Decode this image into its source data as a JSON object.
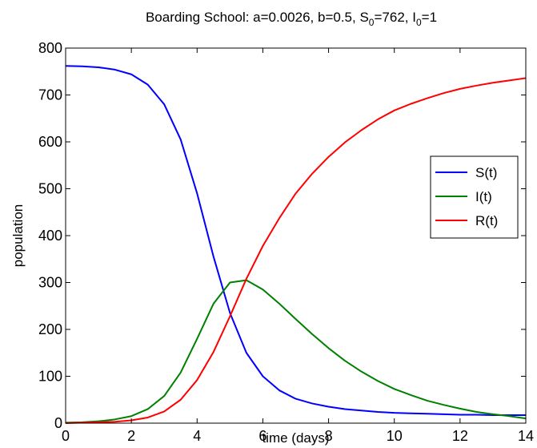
{
  "chart_data": {
    "type": "line",
    "title": {
      "prefix": "Boarding School: a=0.0026, b=0.5, S",
      "s_sub": "0",
      "middle": "=762, I",
      "i_sub": "0",
      "suffix": "=1"
    },
    "xlabel": "time (days)",
    "ylabel": "population",
    "xlim": [
      0,
      14
    ],
    "ylim": [
      0,
      800
    ],
    "xticks": [
      0,
      2,
      4,
      6,
      8,
      10,
      12,
      14
    ],
    "yticks": [
      0,
      100,
      200,
      300,
      400,
      500,
      600,
      700,
      800
    ],
    "grid": false,
    "legend_position": "right",
    "x": [
      0,
      0.5,
      1,
      1.5,
      2,
      2.5,
      3,
      3.5,
      4,
      4.5,
      5,
      5.5,
      6,
      6.5,
      7,
      7.5,
      8,
      8.5,
      9,
      9.5,
      10,
      10.5,
      11,
      11.5,
      12,
      12.5,
      13,
      13.5,
      14
    ],
    "series": [
      {
        "name": "S(t)",
        "color": "#0000ff",
        "values": [
          762,
          761,
          759,
          754,
          744,
          722,
          680,
          605,
          490,
          355,
          235,
          150,
          100,
          70,
          52,
          42,
          35,
          30,
          27,
          24,
          22,
          21,
          20,
          19,
          18,
          18,
          17,
          17,
          17
        ]
      },
      {
        "name": "I(t)",
        "color": "#008000",
        "values": [
          1,
          2,
          4,
          8,
          15,
          30,
          58,
          108,
          180,
          255,
          300,
          305,
          285,
          255,
          222,
          190,
          160,
          133,
          110,
          90,
          73,
          60,
          48,
          39,
          31,
          24,
          19,
          15,
          10
        ]
      },
      {
        "name": "R(t)",
        "color": "#ff0000",
        "values": [
          0,
          1,
          2,
          3,
          6,
          12,
          25,
          50,
          92,
          152,
          228,
          308,
          378,
          437,
          490,
          532,
          568,
          599,
          625,
          648,
          667,
          681,
          693,
          704,
          713,
          720,
          726,
          731,
          736
        ]
      }
    ]
  }
}
